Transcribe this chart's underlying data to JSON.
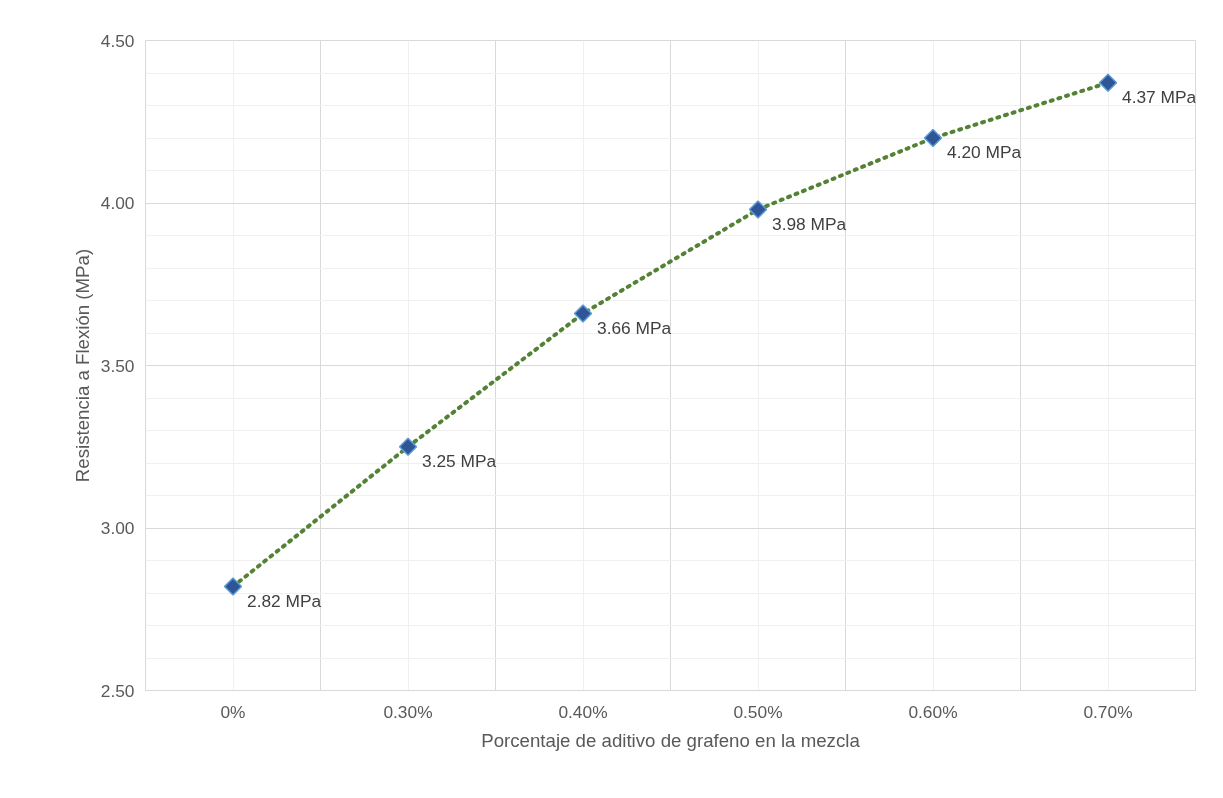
{
  "chart_data": {
    "type": "scatter",
    "xlabel": "Porcentaje de aditivo de grafeno en la mezcla",
    "ylabel": "Resistencia a Flexión (MPa)",
    "categories": [
      "0%",
      "0.30%",
      "0.40%",
      "0.50%",
      "0.60%",
      "0.70%"
    ],
    "ylim": [
      2.5,
      4.5
    ],
    "yticks": [
      {
        "value": 2.5,
        "label": "2.50"
      },
      {
        "value": 3.0,
        "label": "3.00"
      },
      {
        "value": 3.5,
        "label": "3.50"
      },
      {
        "value": 4.0,
        "label": "4.00"
      },
      {
        "value": 4.5,
        "label": "4.50"
      }
    ],
    "grid": true,
    "series": [
      {
        "type": "line",
        "color": "#548235",
        "line_style": "dotted",
        "marker": "none",
        "values": [
          2.82,
          3.25,
          3.66,
          3.98,
          4.2,
          4.37
        ]
      },
      {
        "color": "#2f5597",
        "marker": "diamond",
        "values": [
          2.82,
          3.25,
          3.66,
          3.98,
          4.2,
          4.37
        ],
        "value_labels": [
          "2.82 MPa",
          "3.25 MPa",
          "3.66 MPa",
          "3.98 MPa",
          "4.20 MPa",
          "4.37 MPa"
        ]
      }
    ]
  }
}
